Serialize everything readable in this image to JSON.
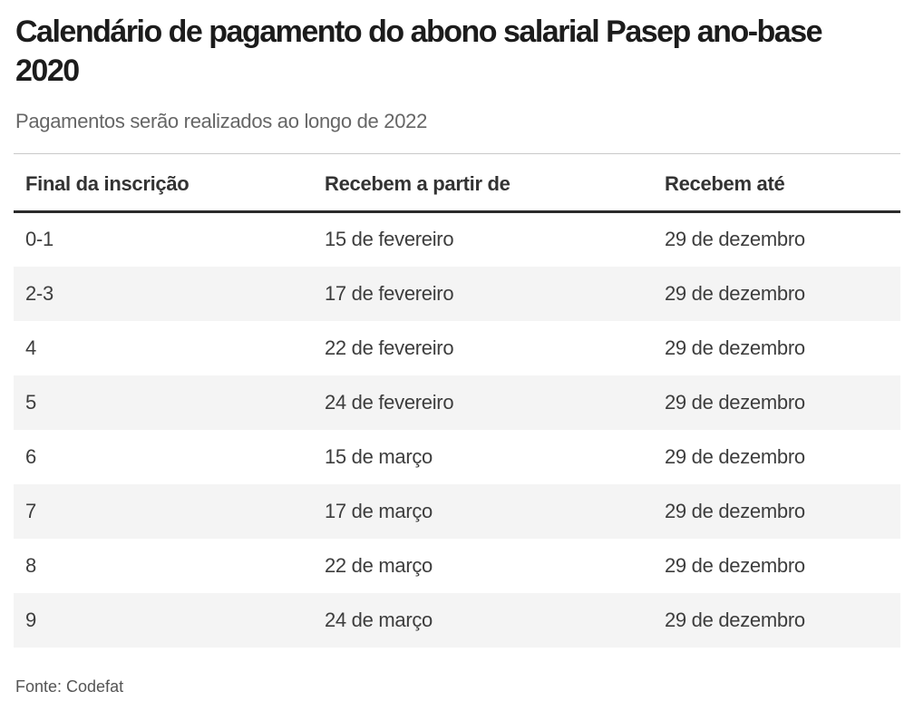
{
  "header": {
    "title_lines": [
      "Calendário de pagamento do abono salarial Pasep ano-base",
      "2020"
    ],
    "subtitle": "Pagamentos serão realizados ao longo de 2022"
  },
  "chart_data": {
    "type": "table",
    "title": "Calendário de pagamento do abono salarial Pasep ano-base 2020",
    "subtitle": "Pagamentos serão realizados ao longo de 2022",
    "columns": [
      "Final da inscrição",
      "Recebem a partir de",
      "Recebem até"
    ],
    "rows": [
      [
        "0-1",
        "15 de fevereiro",
        "29 de dezembro"
      ],
      [
        "2-3",
        "17 de fevereiro",
        "29 de dezembro"
      ],
      [
        "4",
        "22 de fevereiro",
        "29 de dezembro"
      ],
      [
        "5",
        "24 de fevereiro",
        "29 de dezembro"
      ],
      [
        "6",
        "15 de março",
        "29 de dezembro"
      ],
      [
        "7",
        "17 de março",
        "29 de dezembro"
      ],
      [
        "8",
        "22 de março",
        "29 de dezembro"
      ],
      [
        "9",
        "24 de março",
        "29 de dezembro"
      ]
    ],
    "source": "Fonte: Codefat"
  },
  "footer": {
    "source": "Fonte: Codefat"
  },
  "colors": {
    "title_text": "#1c1c1c",
    "subtitle_text": "#666666",
    "header_text": "#333333",
    "cell_text": "#3d3d3d",
    "row_stripe": "#f4f4f4",
    "header_rule": "#2b2b2b",
    "table_top_rule": "#c9c9c9",
    "source_text": "#555555",
    "background": "#ffffff"
  }
}
